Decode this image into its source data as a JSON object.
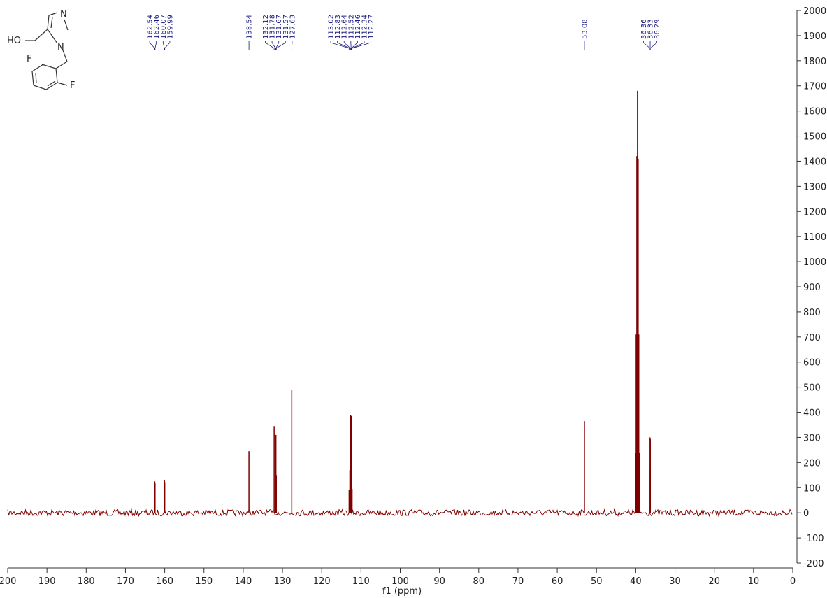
{
  "chart_data": {
    "type": "nmr",
    "x_label": "f1 (ppm)",
    "xlim": [
      200,
      0
    ],
    "xticks": [
      200,
      190,
      180,
      170,
      160,
      150,
      140,
      130,
      120,
      110,
      100,
      90,
      80,
      70,
      60,
      50,
      40,
      30,
      20,
      10,
      0
    ],
    "ylim": [
      -200,
      2000
    ],
    "yticks": [
      -200,
      -100,
      0,
      100,
      200,
      300,
      400,
      500,
      600,
      700,
      800,
      900,
      1000,
      1100,
      1200,
      1300,
      1400,
      1500,
      1600,
      1700,
      1800,
      1900,
      2000
    ],
    "color": "#800000",
    "label_color": "#1a1a80",
    "peaks": {
      "ppm": [
        162.54,
        162.46,
        160.07,
        159.99,
        138.54,
        132.12,
        131.78,
        131.67,
        131.57,
        127.63,
        113.02,
        112.83,
        112.64,
        112.52,
        112.46,
        112.34,
        112.27,
        53.08,
        36.36,
        36.33,
        36.29
      ],
      "heights": [
        125,
        118,
        130,
        122,
        245,
        345,
        160,
        310,
        150,
        490,
        90,
        170,
        390,
        380,
        385,
        170,
        95,
        365,
        300,
        170,
        295
      ]
    },
    "unlabeled_peaks": {
      "ppm": [
        40.06,
        39.9,
        39.73,
        39.56,
        39.39,
        39.23,
        39.06
      ],
      "heights": [
        240,
        710,
        1420,
        1680,
        1410,
        710,
        240
      ]
    },
    "structure": {
      "atoms": [
        "N",
        "HO",
        "N",
        "F",
        "F"
      ]
    }
  }
}
